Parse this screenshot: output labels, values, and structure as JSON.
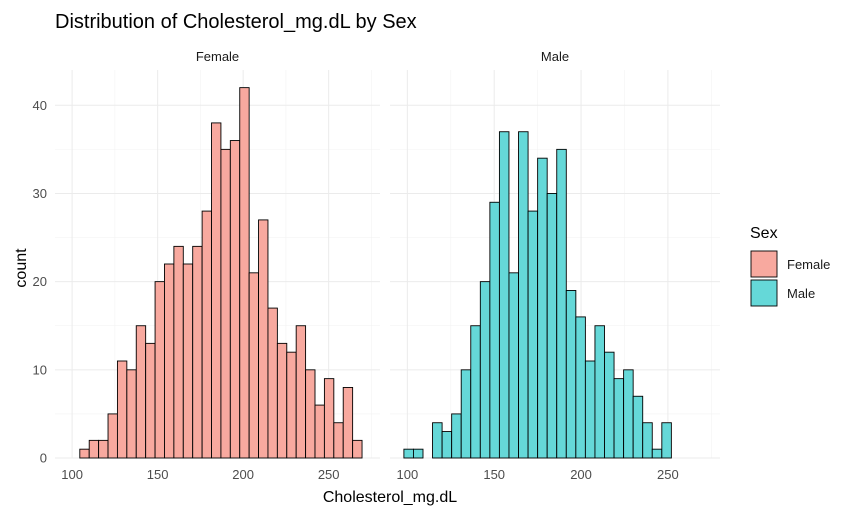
{
  "chart_data": {
    "type": "bar",
    "title": "Distribution of Cholesterol_mg.dL by Sex",
    "xlabel": "Cholesterol_mg.dL",
    "ylabel": "count",
    "xlim": [
      90,
      280
    ],
    "ylim": [
      0,
      44
    ],
    "x_ticks": [
      100,
      150,
      200,
      250
    ],
    "y_ticks": [
      0,
      10,
      20,
      30,
      40
    ],
    "grid": true,
    "legend": {
      "title": "Sex",
      "position": "right"
    },
    "bin_width": 5.5,
    "facets": [
      {
        "name": "Female",
        "color": "#F8A99F",
        "x_start": 104.5,
        "counts": [
          1,
          2,
          2,
          5,
          11,
          10,
          15,
          13,
          20,
          22,
          24,
          22,
          24,
          28,
          38,
          35,
          36,
          42,
          21,
          27,
          17,
          13,
          12,
          15,
          10,
          6,
          9,
          4,
          8,
          2
        ]
      },
      {
        "name": "Male",
        "color": "#65D8D8",
        "x_start": 98.0,
        "counts": [
          1,
          1,
          0,
          4,
          3,
          5,
          10,
          15,
          20,
          29,
          37,
          21,
          37,
          28,
          34,
          30,
          35,
          19,
          16,
          11,
          15,
          12,
          9,
          10,
          7,
          4,
          1,
          4
        ]
      }
    ]
  }
}
